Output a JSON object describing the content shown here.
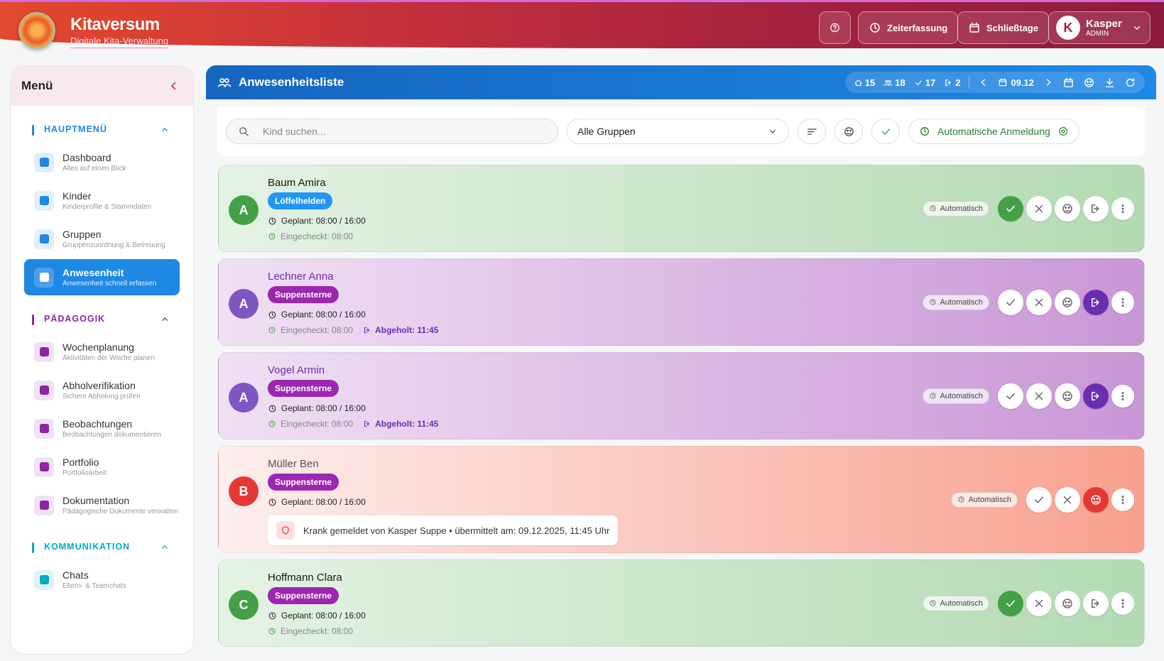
{
  "header": {
    "title": "Kitaversum",
    "subtitle": "Digitale Kita-Verwaltung",
    "buttons": [
      "Zeiterfassung",
      "Schließtage"
    ],
    "user": {
      "initial": "K",
      "name": "Kasper",
      "role": "ADMIN"
    }
  },
  "sidebar": {
    "title": "Menü",
    "active": "Anwesenheit",
    "sections": [
      {
        "title": "HAUPTMENÜ",
        "color": "#1e88e5",
        "items": [
          {
            "label": "Dashboard",
            "desc": "Alles auf einen Blick"
          },
          {
            "label": "Kinder",
            "desc": "Kinderprofile & Stammdaten"
          },
          {
            "label": "Gruppen",
            "desc": "Gruppenzuordnung & Betreuung"
          },
          {
            "label": "Anwesenheit",
            "desc": "Anwesenheit schnell erfassen"
          }
        ]
      },
      {
        "title": "PÄDAGOGIK",
        "color": "#8e24aa",
        "items": [
          {
            "label": "Wochenplanung",
            "desc": "Aktivitäten der Woche planen"
          },
          {
            "label": "Abholverifikation",
            "desc": "Sichere Abholung prüfen"
          },
          {
            "label": "Beobachtungen",
            "desc": "Beobachtungen dokumentieren"
          },
          {
            "label": "Portfolio",
            "desc": "Portfolioarbeit"
          },
          {
            "label": "Dokumentation",
            "desc": "Pädagogische Dokumente verwalten"
          }
        ]
      },
      {
        "title": "KOMMUNIKATION",
        "color": "#00acc1",
        "items": [
          {
            "label": "Chats",
            "desc": "Eltern- & Teamchats"
          }
        ]
      }
    ]
  },
  "main": {
    "title": "Anwesenheitsliste",
    "stats": [
      15,
      18,
      17,
      2
    ],
    "date": "09.12",
    "search_placeholder": "Kind suchen...",
    "group_filter": "Alle Gruppen",
    "auto_label": "Automatische Anmeldung",
    "children": [
      {
        "name": "Baum Amira",
        "initial": "A",
        "group": "Löffelhelden",
        "group_color": "#2196f3",
        "status": "present",
        "planned": "Geplant: 08:00 / 16:00",
        "checkin": "Eingecheckt: 08:00",
        "mode": "Automatisch"
      },
      {
        "name": "Lechner Anna",
        "initial": "A",
        "group": "Suppensterne",
        "group_color": "#9c27b0",
        "status": "picked_up",
        "planned": "Geplant: 08:00 / 16:00",
        "checkin": "Eingecheckt: 08:00",
        "pickup": "Abgeholt: 11:45",
        "mode": "Automatisch"
      },
      {
        "name": "Vogel Armin",
        "initial": "A",
        "group": "Suppensterne",
        "group_color": "#9c27b0",
        "status": "picked_up",
        "planned": "Geplant: 08:00 / 16:00",
        "checkin": "Eingecheckt: 08:00",
        "pickup": "Abgeholt: 11:45",
        "mode": "Automatisch"
      },
      {
        "name": "Müller Ben",
        "initial": "B",
        "group": "Suppensterne",
        "group_color": "#9c27b0",
        "status": "sick",
        "planned": "Geplant: 08:00 / 16:00",
        "note": "Krank gemeldet von Kasper Suppe • übermittelt am: 09.12.2025, 11:45 Uhr",
        "mode": "Automatisch"
      },
      {
        "name": "Hoffmann Clara",
        "initial": "C",
        "group": "Suppensterne",
        "group_color": "#9c27b0",
        "status": "present",
        "planned": "Geplant: 08:00 / 16:00",
        "checkin": "Eingecheckt: 08:00",
        "mode": "Automatisch"
      }
    ]
  }
}
